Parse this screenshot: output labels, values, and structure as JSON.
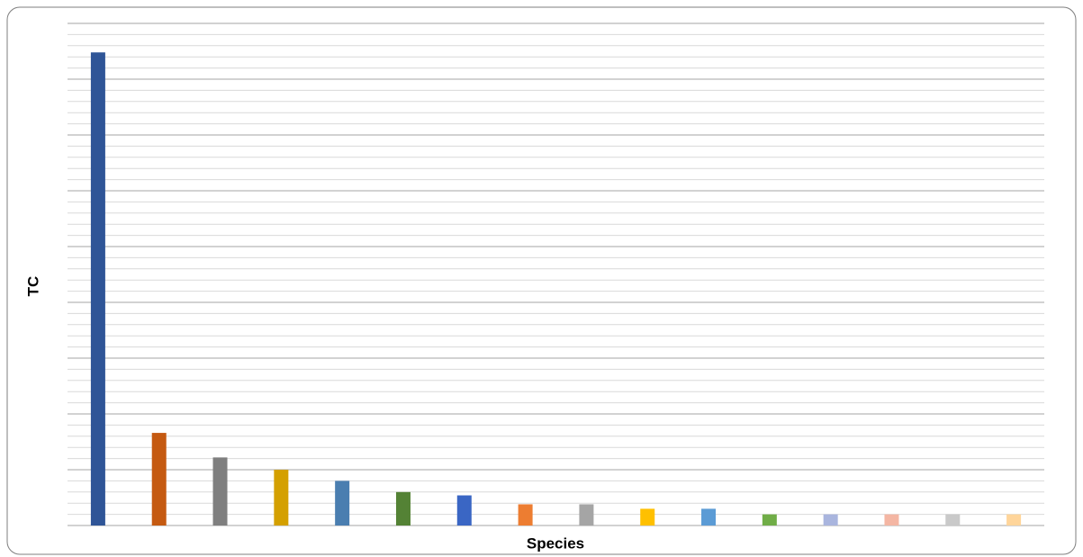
{
  "chart_data": {
    "type": "bar",
    "x_label": "Species",
    "y_label": "TC",
    "categories": [
      null,
      null,
      null,
      null,
      null,
      null,
      null,
      null,
      null,
      null,
      null,
      null,
      null,
      null,
      null,
      null
    ],
    "values": [
      42.4,
      8.3,
      6.1,
      5.0,
      4.0,
      3.0,
      2.7,
      1.9,
      1.9,
      1.5,
      1.5,
      1.0,
      1.0,
      1.0,
      1.0,
      1.0
    ],
    "colors": [
      "#2f5597",
      "#c55a11",
      "#7f7f7f",
      "#d4a000",
      "#4a7eb0",
      "#548235",
      "#3a66c4",
      "#ed7d31",
      "#a5a5a5",
      "#ffc000",
      "#5b9bd5",
      "#70ad47",
      "#a9b5de",
      "#f4b6a3",
      "#c9c9c9",
      "#ffd59a"
    ],
    "ylim": [
      0,
      45
    ],
    "yticks": [
      0,
      5,
      10,
      15,
      20,
      25,
      30,
      35,
      40,
      45
    ],
    "minor_yticks": [
      1,
      2,
      3,
      4,
      6,
      7,
      8,
      9,
      11,
      12,
      13,
      14,
      16,
      17,
      18,
      19,
      21,
      22,
      23,
      24,
      26,
      27,
      28,
      29,
      31,
      32,
      33,
      34,
      36,
      37,
      38,
      39,
      41,
      42,
      43,
      44
    ],
    "grid": true
  }
}
